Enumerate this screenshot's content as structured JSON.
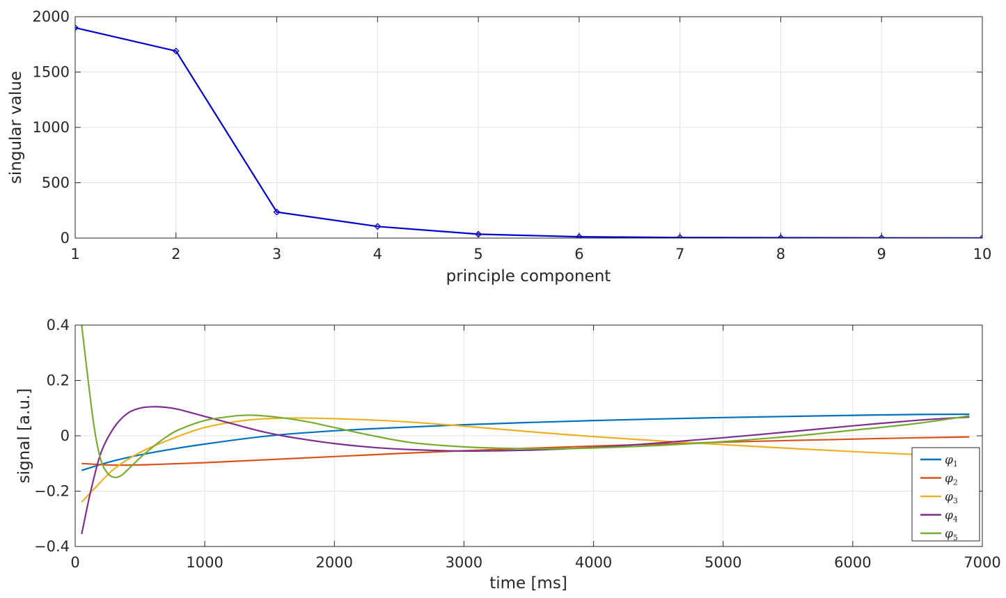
{
  "chart_data": [
    {
      "type": "line",
      "xlabel": "principle component",
      "ylabel": "singular value",
      "xlim": [
        1,
        10
      ],
      "ylim": [
        0,
        2000
      ],
      "xticks": [
        "1",
        "2",
        "3",
        "4",
        "5",
        "6",
        "7",
        "8",
        "9",
        "10"
      ],
      "yticks": [
        "0",
        "500",
        "1000",
        "1500",
        "2000"
      ],
      "grid": true,
      "series": [
        {
          "color": "#0000cc",
          "marker": "diamond",
          "x": [
            1,
            2,
            3,
            4,
            5,
            6,
            7,
            8,
            9,
            10
          ],
          "y": [
            1900,
            1690,
            235,
            105,
            35,
            12,
            5,
            3,
            2,
            1
          ]
        }
      ]
    },
    {
      "type": "line",
      "xlabel": "time [ms]",
      "ylabel": "signal [a.u.]",
      "xlim": [
        0,
        7000
      ],
      "ylim": [
        -0.4,
        0.4
      ],
      "xticks": [
        "0",
        "1000",
        "2000",
        "3000",
        "4000",
        "5000",
        "6000",
        "7000"
      ],
      "yticks": [
        "−0.4",
        "−0.2",
        "0",
        "0.2",
        "0.4"
      ],
      "grid": true,
      "legend_position": "bottom-right",
      "series": [
        {
          "name": "φ",
          "subscript": "1",
          "color": "#0072bd",
          "x": [
            50,
            300,
            600,
            1000,
            1500,
            2000,
            2500,
            3000,
            3500,
            4000,
            4500,
            5000,
            5500,
            6000,
            6500,
            6900
          ],
          "y": [
            -0.125,
            -0.09,
            -0.06,
            -0.03,
            0.0,
            0.018,
            0.03,
            0.04,
            0.048,
            0.055,
            0.061,
            0.066,
            0.07,
            0.074,
            0.077,
            0.078
          ]
        },
        {
          "name": "φ",
          "subscript": "2",
          "color": "#d95319",
          "x": [
            50,
            300,
            600,
            1000,
            1500,
            2000,
            2500,
            3000,
            3500,
            4000,
            4500,
            5000,
            5500,
            6000,
            6500,
            6900
          ],
          "y": [
            -0.1,
            -0.106,
            -0.104,
            -0.097,
            -0.086,
            -0.075,
            -0.064,
            -0.054,
            -0.045,
            -0.037,
            -0.03,
            -0.023,
            -0.017,
            -0.012,
            -0.007,
            -0.004
          ]
        },
        {
          "name": "φ",
          "subscript": "3",
          "color": "#edb120",
          "x": [
            50,
            150,
            300,
            500,
            750,
            1000,
            1300,
            1600,
            2000,
            2500,
            3000,
            3500,
            4000,
            4500,
            5000,
            5500,
            6000,
            6500
          ],
          "y": [
            -0.24,
            -0.19,
            -0.12,
            -0.06,
            -0.01,
            0.03,
            0.055,
            0.064,
            0.062,
            0.052,
            0.035,
            0.015,
            -0.003,
            -0.018,
            -0.032,
            -0.045,
            -0.057,
            -0.068
          ]
        },
        {
          "name": "φ",
          "subscript": "4",
          "color": "#7e2f8e",
          "x": [
            50,
            120,
            200,
            300,
            400,
            500,
            600,
            700,
            800,
            1000,
            1200,
            1400,
            1600,
            1800,
            2000,
            2300,
            2600,
            3000,
            3500,
            4000,
            4500,
            5000,
            5500,
            6000,
            6500,
            6900
          ],
          "y": [
            -0.355,
            -0.2,
            -0.06,
            0.03,
            0.08,
            0.1,
            0.105,
            0.103,
            0.095,
            0.07,
            0.045,
            0.02,
            0.0,
            -0.015,
            -0.028,
            -0.042,
            -0.05,
            -0.055,
            -0.052,
            -0.042,
            -0.026,
            -0.007,
            0.014,
            0.036,
            0.056,
            0.068
          ]
        },
        {
          "name": "φ",
          "subscript": "5",
          "color": "#77ac30",
          "x": [
            50,
            100,
            150,
            200,
            250,
            300,
            350,
            400,
            500,
            600,
            700,
            800,
            1000,
            1200,
            1300,
            1400,
            1600,
            1800,
            2000,
            2300,
            2600,
            3000,
            3300,
            3600,
            4000,
            4500,
            5000,
            5500,
            6000,
            6500,
            6900
          ],
          "y": [
            0.4,
            0.2,
            0.02,
            -0.09,
            -0.135,
            -0.15,
            -0.145,
            -0.125,
            -0.08,
            -0.04,
            -0.005,
            0.022,
            0.055,
            0.07,
            0.074,
            0.074,
            0.065,
            0.05,
            0.03,
            0.0,
            -0.025,
            -0.04,
            -0.045,
            -0.047,
            -0.044,
            -0.035,
            -0.021,
            -0.003,
            0.02,
            0.045,
            0.072
          ]
        }
      ]
    }
  ]
}
